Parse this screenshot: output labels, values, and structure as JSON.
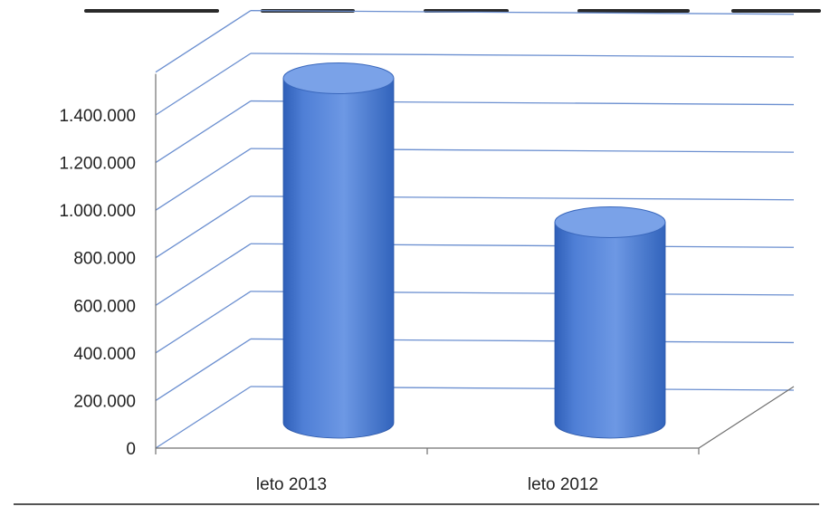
{
  "chart_data": {
    "type": "bar",
    "bar_shape": "cylinder-3d",
    "categories": [
      "leto 2013",
      "leto 2012"
    ],
    "values": [
      1440000,
      835000
    ],
    "title": "",
    "xlabel": "",
    "ylabel": "",
    "ylim": [
      0,
      1400000
    ],
    "yticks": [
      0,
      200000,
      400000,
      600000,
      800000,
      1000000,
      1200000,
      1400000
    ],
    "ytick_labels": [
      "0",
      "200.000",
      "400.000",
      "600.000",
      "800.000",
      "1.000.000",
      "1.200.000",
      "1.400.000"
    ],
    "grid": true,
    "legend": "none",
    "colors": {
      "bar": "#4f7fd6",
      "bar_dark": "#2f5fb8",
      "bar_top": "#7aa2e8",
      "grid": "#6b8fd0",
      "axis": "#707070",
      "text": "#222222"
    }
  }
}
